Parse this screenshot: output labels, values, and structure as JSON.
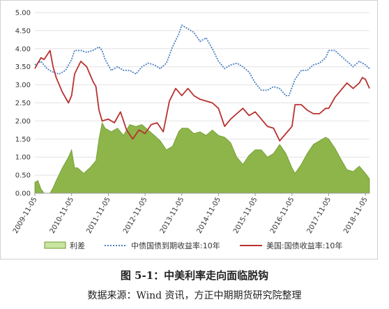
{
  "caption": {
    "title": "图 5-1：中美利率走向面临脱钩",
    "source": "数据来源：Wind 资讯，方正中期期货研究院整理"
  },
  "colors": {
    "spread": "#8db54a",
    "spread_edge": "#6e9a2e",
    "china": "#4a7fc1",
    "us": "#b8312f"
  },
  "chart_data": {
    "type": "area",
    "title": "",
    "xlabel": "",
    "ylabel": "",
    "ylim": [
      0,
      5
    ],
    "yticks": [
      "0.00",
      "0.50",
      "1.00",
      "1.50",
      "2.00",
      "2.50",
      "3.00",
      "3.50",
      "4.00",
      "4.50",
      "5.00"
    ],
    "xticks": [
      "2009-11-05",
      "2010-11-05",
      "2011-11-05",
      "2012-11-05",
      "2013-11-05",
      "2014-11-05",
      "2015-11-05",
      "2016-11-05",
      "2017-11-05",
      "2018-11-05"
    ],
    "xrange": [
      "2009-11-05",
      "2018-12-15"
    ],
    "grid": "horizontal",
    "legend": "bottom",
    "series": [
      {
        "name": "利差",
        "kind": "area",
        "points": [
          [
            "2009-11-05",
            0.3
          ],
          [
            "2009-12-05",
            0.35
          ],
          [
            "2010-01-05",
            0.12
          ],
          [
            "2010-02-05",
            0.0
          ],
          [
            "2010-04-05",
            0.0
          ],
          [
            "2010-05-05",
            0.15
          ],
          [
            "2010-06-05",
            0.35
          ],
          [
            "2010-08-05",
            0.7
          ],
          [
            "2010-10-05",
            1.0
          ],
          [
            "2010-11-05",
            1.2
          ],
          [
            "2010-12-05",
            0.7
          ],
          [
            "2011-01-05",
            0.7
          ],
          [
            "2011-03-05",
            0.55
          ],
          [
            "2011-05-05",
            0.7
          ],
          [
            "2011-07-05",
            0.9
          ],
          [
            "2011-08-05",
            1.5
          ],
          [
            "2011-09-05",
            1.95
          ],
          [
            "2011-10-05",
            1.8
          ],
          [
            "2011-12-05",
            1.7
          ],
          [
            "2012-02-05",
            1.8
          ],
          [
            "2012-04-05",
            1.6
          ],
          [
            "2012-06-05",
            1.9
          ],
          [
            "2012-08-05",
            1.85
          ],
          [
            "2012-10-05",
            1.9
          ],
          [
            "2012-12-05",
            1.75
          ],
          [
            "2013-02-05",
            1.6
          ],
          [
            "2013-04-05",
            1.45
          ],
          [
            "2013-06-05",
            1.2
          ],
          [
            "2013-08-05",
            1.3
          ],
          [
            "2013-10-05",
            1.7
          ],
          [
            "2013-11-05",
            1.8
          ],
          [
            "2014-01-05",
            1.8
          ],
          [
            "2014-03-05",
            1.65
          ],
          [
            "2014-05-05",
            1.7
          ],
          [
            "2014-07-05",
            1.6
          ],
          [
            "2014-09-05",
            1.75
          ],
          [
            "2014-11-05",
            1.6
          ],
          [
            "2015-01-05",
            1.55
          ],
          [
            "2015-03-05",
            1.4
          ],
          [
            "2015-05-05",
            1.0
          ],
          [
            "2015-07-05",
            0.8
          ],
          [
            "2015-09-05",
            1.05
          ],
          [
            "2015-11-05",
            1.2
          ],
          [
            "2016-01-05",
            1.2
          ],
          [
            "2016-03-05",
            1.0
          ],
          [
            "2016-05-05",
            1.1
          ],
          [
            "2016-07-05",
            1.35
          ],
          [
            "2016-09-05",
            1.1
          ],
          [
            "2016-11-05",
            0.7
          ],
          [
            "2016-12-05",
            0.55
          ],
          [
            "2017-02-05",
            0.8
          ],
          [
            "2017-04-05",
            1.1
          ],
          [
            "2017-06-05",
            1.35
          ],
          [
            "2017-08-05",
            1.45
          ],
          [
            "2017-10-05",
            1.55
          ],
          [
            "2017-11-05",
            1.5
          ],
          [
            "2018-01-05",
            1.25
          ],
          [
            "2018-03-05",
            0.95
          ],
          [
            "2018-05-05",
            0.65
          ],
          [
            "2018-07-05",
            0.6
          ],
          [
            "2018-09-05",
            0.75
          ],
          [
            "2018-11-05",
            0.55
          ],
          [
            "2018-12-15",
            0.4
          ]
        ]
      },
      {
        "name": "中债国债到期收益率:10年",
        "kind": "dotted-line",
        "points": [
          [
            "2009-11-05",
            3.55
          ],
          [
            "2009-12-05",
            3.6
          ],
          [
            "2010-01-05",
            3.65
          ],
          [
            "2010-03-05",
            3.45
          ],
          [
            "2010-05-05",
            3.35
          ],
          [
            "2010-07-05",
            3.3
          ],
          [
            "2010-09-05",
            3.4
          ],
          [
            "2010-11-05",
            3.7
          ],
          [
            "2010-12-05",
            3.95
          ],
          [
            "2011-02-05",
            3.95
          ],
          [
            "2011-04-05",
            3.9
          ],
          [
            "2011-06-05",
            3.95
          ],
          [
            "2011-08-05",
            4.05
          ],
          [
            "2011-09-05",
            3.95
          ],
          [
            "2011-10-05",
            3.7
          ],
          [
            "2011-12-05",
            3.4
          ],
          [
            "2012-02-05",
            3.5
          ],
          [
            "2012-04-05",
            3.4
          ],
          [
            "2012-06-05",
            3.4
          ],
          [
            "2012-08-05",
            3.3
          ],
          [
            "2012-10-05",
            3.5
          ],
          [
            "2012-12-05",
            3.6
          ],
          [
            "2013-02-05",
            3.55
          ],
          [
            "2013-04-05",
            3.45
          ],
          [
            "2013-06-05",
            3.6
          ],
          [
            "2013-08-05",
            4.05
          ],
          [
            "2013-10-05",
            4.4
          ],
          [
            "2013-11-05",
            4.65
          ],
          [
            "2014-01-05",
            4.55
          ],
          [
            "2014-03-05",
            4.45
          ],
          [
            "2014-05-05",
            4.2
          ],
          [
            "2014-07-05",
            4.3
          ],
          [
            "2014-09-05",
            4.0
          ],
          [
            "2014-11-05",
            3.65
          ],
          [
            "2015-01-05",
            3.45
          ],
          [
            "2015-03-05",
            3.55
          ],
          [
            "2015-05-05",
            3.6
          ],
          [
            "2015-07-05",
            3.5
          ],
          [
            "2015-09-05",
            3.35
          ],
          [
            "2015-11-05",
            3.05
          ],
          [
            "2016-01-05",
            2.85
          ],
          [
            "2016-03-05",
            2.85
          ],
          [
            "2016-05-05",
            2.95
          ],
          [
            "2016-07-05",
            2.9
          ],
          [
            "2016-09-05",
            2.7
          ],
          [
            "2016-10-05",
            2.7
          ],
          [
            "2016-12-05",
            3.15
          ],
          [
            "2017-02-05",
            3.4
          ],
          [
            "2017-04-05",
            3.4
          ],
          [
            "2017-06-05",
            3.55
          ],
          [
            "2017-08-05",
            3.6
          ],
          [
            "2017-10-05",
            3.75
          ],
          [
            "2017-11-05",
            3.95
          ],
          [
            "2018-01-05",
            3.95
          ],
          [
            "2018-03-05",
            3.8
          ],
          [
            "2018-05-05",
            3.65
          ],
          [
            "2018-07-05",
            3.5
          ],
          [
            "2018-09-05",
            3.65
          ],
          [
            "2018-11-05",
            3.55
          ],
          [
            "2018-12-15",
            3.45
          ]
        ]
      },
      {
        "name": "美国:国债收益率:10年",
        "kind": "line",
        "points": [
          [
            "2009-11-05",
            3.45
          ],
          [
            "2009-12-05",
            3.6
          ],
          [
            "2010-01-05",
            3.75
          ],
          [
            "2010-02-05",
            3.7
          ],
          [
            "2010-04-05",
            3.95
          ],
          [
            "2010-05-05",
            3.5
          ],
          [
            "2010-06-05",
            3.2
          ],
          [
            "2010-08-05",
            2.8
          ],
          [
            "2010-10-05",
            2.5
          ],
          [
            "2010-11-05",
            2.7
          ],
          [
            "2010-12-05",
            3.3
          ],
          [
            "2011-02-05",
            3.65
          ],
          [
            "2011-04-05",
            3.5
          ],
          [
            "2011-06-05",
            3.1
          ],
          [
            "2011-07-05",
            2.95
          ],
          [
            "2011-08-05",
            2.3
          ],
          [
            "2011-09-05",
            2.0
          ],
          [
            "2011-11-05",
            2.05
          ],
          [
            "2012-01-05",
            1.95
          ],
          [
            "2012-03-05",
            2.25
          ],
          [
            "2012-05-05",
            1.75
          ],
          [
            "2012-07-05",
            1.5
          ],
          [
            "2012-09-05",
            1.75
          ],
          [
            "2012-11-05",
            1.65
          ],
          [
            "2013-01-05",
            1.9
          ],
          [
            "2013-03-05",
            1.95
          ],
          [
            "2013-05-05",
            1.7
          ],
          [
            "2013-07-05",
            2.55
          ],
          [
            "2013-09-05",
            2.9
          ],
          [
            "2013-11-05",
            2.7
          ],
          [
            "2014-01-05",
            2.9
          ],
          [
            "2014-03-05",
            2.7
          ],
          [
            "2014-05-05",
            2.6
          ],
          [
            "2014-07-05",
            2.55
          ],
          [
            "2014-09-05",
            2.5
          ],
          [
            "2014-11-05",
            2.35
          ],
          [
            "2015-01-05",
            1.85
          ],
          [
            "2015-03-05",
            2.05
          ],
          [
            "2015-05-05",
            2.2
          ],
          [
            "2015-07-05",
            2.35
          ],
          [
            "2015-09-05",
            2.15
          ],
          [
            "2015-11-05",
            2.25
          ],
          [
            "2016-01-05",
            2.05
          ],
          [
            "2016-03-05",
            1.85
          ],
          [
            "2016-05-05",
            1.8
          ],
          [
            "2016-07-05",
            1.45
          ],
          [
            "2016-09-05",
            1.65
          ],
          [
            "2016-11-05",
            1.85
          ],
          [
            "2016-12-05",
            2.45
          ],
          [
            "2017-02-05",
            2.45
          ],
          [
            "2017-04-05",
            2.3
          ],
          [
            "2017-06-05",
            2.2
          ],
          [
            "2017-08-05",
            2.2
          ],
          [
            "2017-10-05",
            2.35
          ],
          [
            "2017-11-05",
            2.35
          ],
          [
            "2018-01-05",
            2.65
          ],
          [
            "2018-03-05",
            2.85
          ],
          [
            "2018-05-05",
            3.05
          ],
          [
            "2018-07-05",
            2.9
          ],
          [
            "2018-09-05",
            3.05
          ],
          [
            "2018-10-05",
            3.2
          ],
          [
            "2018-11-05",
            3.15
          ],
          [
            "2018-12-15",
            2.9
          ]
        ]
      }
    ]
  }
}
